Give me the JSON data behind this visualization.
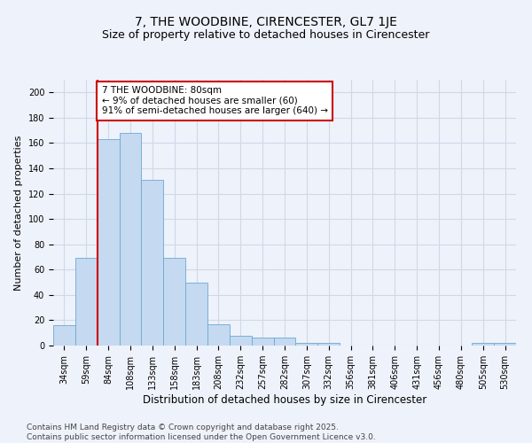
{
  "title": "7, THE WOODBINE, CIRENCESTER, GL7 1JE",
  "subtitle": "Size of property relative to detached houses in Cirencester",
  "xlabel": "Distribution of detached houses by size in Cirencester",
  "ylabel": "Number of detached properties",
  "categories": [
    "34sqm",
    "59sqm",
    "84sqm",
    "108sqm",
    "133sqm",
    "158sqm",
    "183sqm",
    "208sqm",
    "232sqm",
    "257sqm",
    "282sqm",
    "307sqm",
    "332sqm",
    "356sqm",
    "381sqm",
    "406sqm",
    "431sqm",
    "456sqm",
    "480sqm",
    "505sqm",
    "530sqm"
  ],
  "values": [
    16,
    69,
    163,
    168,
    131,
    69,
    50,
    17,
    8,
    6,
    6,
    2,
    2,
    0,
    0,
    0,
    0,
    0,
    0,
    2,
    2
  ],
  "bar_color": "#c5d9f0",
  "bar_edge_color": "#6aaad4",
  "red_line_index": 2,
  "red_line_color": "#cc0000",
  "annotation_text": "7 THE WOODBINE: 80sqm\n← 9% of detached houses are smaller (60)\n91% of semi-detached houses are larger (640) →",
  "annotation_box_color": "#ffffff",
  "annotation_box_edge_color": "#cc0000",
  "ylim": [
    0,
    210
  ],
  "yticks": [
    0,
    20,
    40,
    60,
    80,
    100,
    120,
    140,
    160,
    180,
    200
  ],
  "background_color": "#eef2fa",
  "grid_color": "#d0d8e8",
  "footer_line1": "Contains HM Land Registry data © Crown copyright and database right 2025.",
  "footer_line2": "Contains public sector information licensed under the Open Government Licence v3.0.",
  "title_fontsize": 10,
  "subtitle_fontsize": 9,
  "xlabel_fontsize": 8.5,
  "ylabel_fontsize": 8,
  "tick_fontsize": 7,
  "annotation_fontsize": 7.5,
  "footer_fontsize": 6.5
}
